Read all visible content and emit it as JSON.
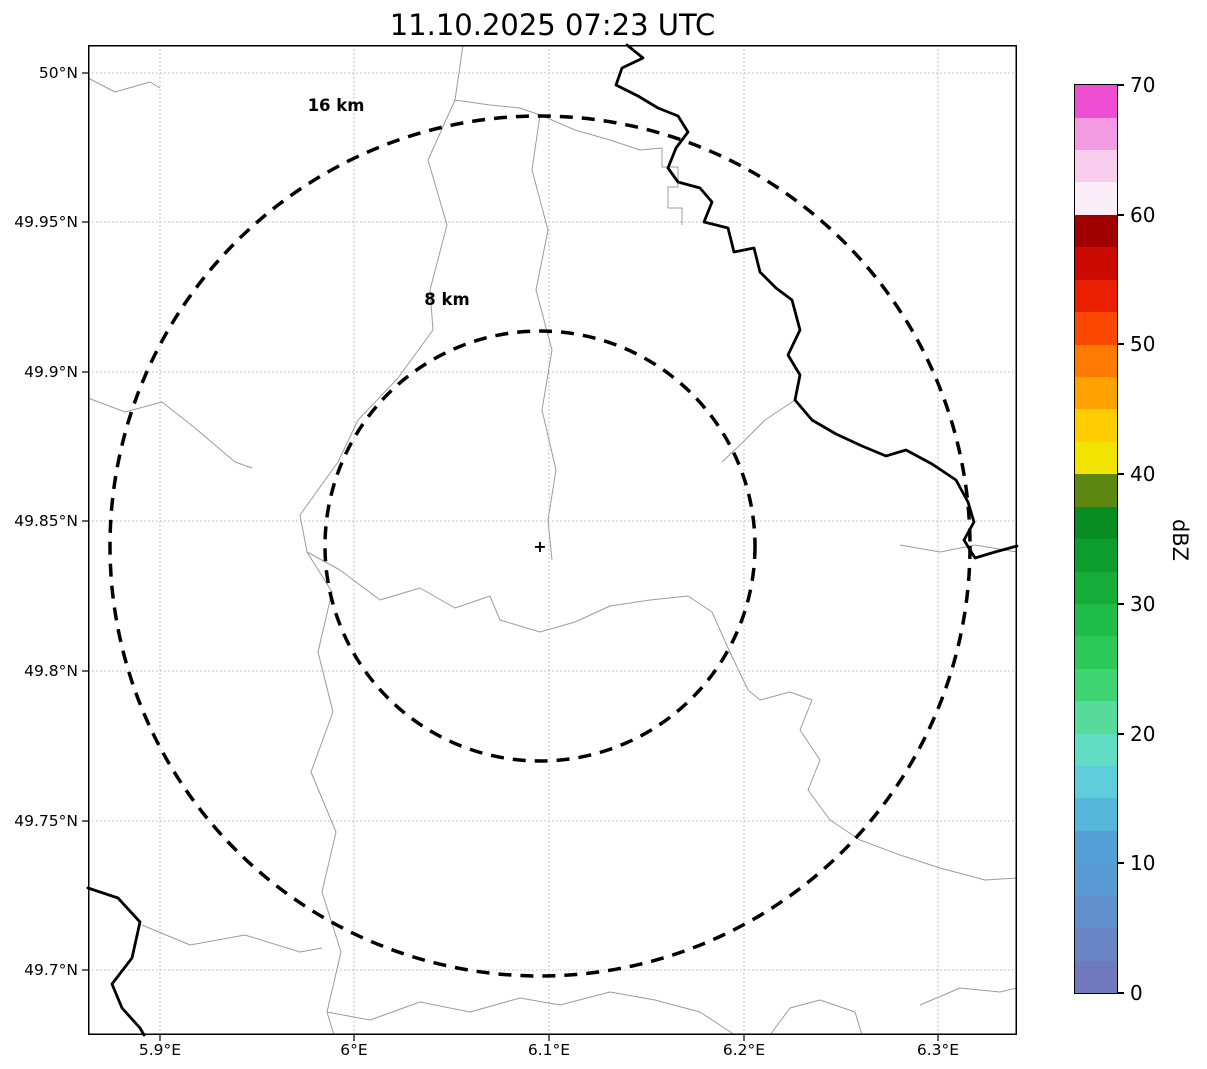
{
  "title": "11.10.2025 07:23 UTC",
  "axes": {
    "y_ticks": [
      "50°N",
      "49.95°N",
      "49.9°N",
      "49.85°N",
      "49.8°N",
      "49.75°N",
      "49.7°N"
    ],
    "x_ticks": [
      "5.9°E",
      "6°E",
      "6.1°E",
      "6.2°E",
      "6.3°E"
    ]
  },
  "rings": {
    "outer_label": "16 km",
    "inner_label": "8 km"
  },
  "site_marker": "+",
  "colorbar": {
    "label": "dBZ",
    "ticks": [
      "0",
      "10",
      "20",
      "30",
      "40",
      "50",
      "60",
      "70"
    ],
    "colors": [
      "#7179bd",
      "#6a85c6",
      "#6190cd",
      "#5a9bd3",
      "#539fd6",
      "#57b7da",
      "#5ecfda",
      "#63dcc4",
      "#57da9a",
      "#3ed474",
      "#2bc957",
      "#1fbc47",
      "#15ad38",
      "#0d9d2c",
      "#078d21",
      "#5d8710",
      "#f0e400",
      "#ffcc00",
      "#ffa200",
      "#ff7a00",
      "#fb4800",
      "#ea1f00",
      "#cb0a00",
      "#a00000",
      "#fceef8",
      "#f8cdee",
      "#f49ae2",
      "#ee4fd2"
    ]
  }
}
